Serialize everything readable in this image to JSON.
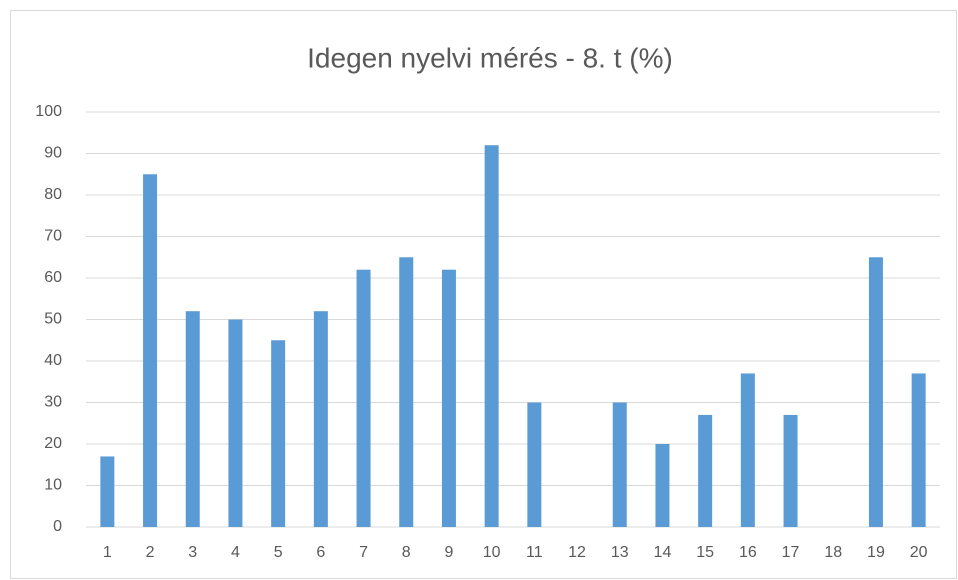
{
  "chart_data": {
    "type": "bar",
    "title": "Idegen nyelvi mérés - 8. t (%)",
    "categories": [
      "1",
      "2",
      "3",
      "4",
      "5",
      "6",
      "7",
      "8",
      "9",
      "10",
      "11",
      "12",
      "13",
      "14",
      "15",
      "16",
      "17",
      "18",
      "19",
      "20"
    ],
    "values": [
      17,
      85,
      52,
      50,
      45,
      52,
      62,
      65,
      62,
      92,
      30,
      0,
      30,
      20,
      27,
      37,
      27,
      0,
      65,
      37
    ],
    "color": "#5b9bd5",
    "ylim": [
      0,
      100
    ],
    "yticks": [
      0,
      10,
      20,
      30,
      40,
      50,
      60,
      70,
      80,
      90,
      100
    ],
    "grid": true
  }
}
